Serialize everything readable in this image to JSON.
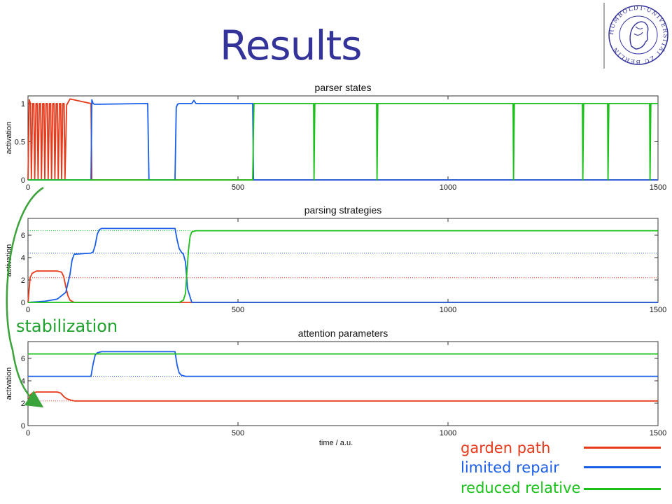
{
  "slide": {
    "title": "Results",
    "annotation": "stabilization",
    "annotation_color": "#1fa12e",
    "logo_text": "HUMBOLDT-UNIVERSITÄT ZU BERLIN"
  },
  "legend": [
    {
      "label": "garden path",
      "color": "#e8391a"
    },
    {
      "label": "limited repair",
      "color": "#1a5ee8"
    },
    {
      "label": "reduced relative",
      "color": "#19c119"
    }
  ],
  "chart_data": [
    {
      "type": "line",
      "title": "parser states",
      "xlabel": "",
      "ylabel": "activation",
      "xlim": [
        0,
        1500
      ],
      "ylim": [
        0,
        1.1
      ],
      "xticks": [
        "0",
        "500",
        "1000",
        "1500"
      ],
      "yticks": [
        "0",
        "0.5",
        "1"
      ],
      "series": [
        {
          "name": "garden path",
          "color": "#e8391a",
          "x": [
            0,
            3,
            6,
            8,
            11,
            14,
            16,
            19,
            22,
            24,
            27,
            30,
            32,
            35,
            38,
            40,
            43,
            46,
            48,
            51,
            54,
            56,
            59,
            62,
            64,
            67,
            70,
            72,
            75,
            78,
            80,
            83,
            86,
            88,
            92,
            100,
            150,
            152,
            155,
            200,
            1500
          ],
          "y": [
            0,
            1.05,
            1,
            0,
            1,
            1,
            0,
            1,
            1,
            0,
            1,
            1,
            0,
            1,
            1,
            0,
            1,
            1,
            0,
            1,
            1,
            0,
            1,
            1,
            0,
            1,
            1,
            0,
            1,
            1,
            0,
            1,
            1,
            0,
            0.98,
            1.06,
            1,
            0,
            0,
            0,
            0
          ]
        },
        {
          "name": "limited repair",
          "color": "#1a5ee8",
          "x": [
            0,
            150,
            152,
            155,
            158,
            285,
            288,
            290,
            350,
            353,
            356,
            360,
            390,
            395,
            400,
            535,
            537,
            540,
            1500
          ],
          "y": [
            0,
            0,
            1.05,
            1.0,
            0.99,
            1,
            0,
            0,
            0,
            0.95,
            0.99,
            1,
            1,
            1.04,
            1,
            1,
            0,
            0,
            0
          ]
        },
        {
          "name": "reduced relative",
          "color": "#19c119",
          "x": [
            0,
            535,
            538,
            540,
            680,
            681,
            683,
            830,
            831,
            833,
            1155,
            1156,
            1158,
            1320,
            1321,
            1323,
            1380,
            1381,
            1383,
            1480,
            1481,
            1483,
            1500
          ],
          "y": [
            0,
            0,
            1,
            1,
            1,
            0,
            1,
            1,
            0,
            1,
            1,
            0,
            1,
            1,
            0,
            1,
            1,
            0,
            1,
            1,
            0,
            1,
            1
          ]
        }
      ]
    },
    {
      "type": "line",
      "title": "parsing strategies",
      "xlabel": "",
      "ylabel": "activation",
      "xlim": [
        0,
        1500
      ],
      "ylim": [
        0,
        7.5
      ],
      "xticks": [
        "0",
        "500",
        "1000",
        "1500"
      ],
      "yticks": [
        "0",
        "2",
        "4",
        "6"
      ],
      "reference_lines": [
        {
          "y": 2.2,
          "color": "#e8391a"
        },
        {
          "y": 4.4,
          "color": "#1a5ee8"
        },
        {
          "y": 6.4,
          "color": "#19c119"
        }
      ],
      "series": [
        {
          "name": "garden path",
          "color": "#e8391a",
          "x": [
            0,
            5,
            10,
            20,
            40,
            70,
            80,
            85,
            90,
            95,
            100,
            110,
            120,
            1500
          ],
          "y": [
            0,
            2.2,
            2.6,
            2.8,
            2.8,
            2.8,
            2.7,
            2.3,
            1.4,
            0.6,
            0.2,
            0,
            0,
            0
          ]
        },
        {
          "name": "limited repair",
          "color": "#1a5ee8",
          "x": [
            0,
            40,
            70,
            90,
            100,
            105,
            110,
            150,
            155,
            160,
            165,
            170,
            175,
            190,
            350,
            355,
            360,
            365,
            370,
            375,
            380,
            390,
            1500
          ],
          "y": [
            0,
            0.1,
            0.3,
            0.9,
            2.5,
            3.8,
            4.3,
            4.4,
            4.5,
            5.1,
            6.1,
            6.5,
            6.6,
            6.6,
            6.6,
            5.6,
            4.8,
            4.5,
            4.3,
            3.6,
            1.2,
            0,
            0
          ]
        },
        {
          "name": "reduced relative",
          "color": "#19c119",
          "x": [
            0,
            360,
            370,
            375,
            378,
            382,
            386,
            390,
            400,
            1500
          ],
          "y": [
            0,
            0,
            0.2,
            0.8,
            2.5,
            4.6,
            5.9,
            6.3,
            6.4,
            6.4
          ]
        }
      ]
    },
    {
      "type": "line",
      "title": "attention parameters",
      "xlabel": "time / a.u.",
      "ylabel": "activation",
      "xlim": [
        0,
        1500
      ],
      "ylim": [
        0,
        7.5
      ],
      "xticks": [
        "0",
        "500",
        "1000",
        "1500"
      ],
      "yticks": [
        "0",
        "2",
        "4",
        "6"
      ],
      "reference_lines": [
        {
          "y": 2.2,
          "color": "#e8391a"
        },
        {
          "y": 4.4,
          "color": "#1a5ee8"
        },
        {
          "y": 6.4,
          "color": "#19c119"
        }
      ],
      "series": [
        {
          "name": "garden path",
          "color": "#e8391a",
          "x": [
            0,
            5,
            10,
            20,
            70,
            78,
            85,
            92,
            100,
            110,
            1500
          ],
          "y": [
            2.2,
            2.7,
            2.9,
            3.0,
            3.0,
            2.9,
            2.6,
            2.4,
            2.3,
            2.2,
            2.2
          ]
        },
        {
          "name": "limited repair",
          "color": "#1a5ee8",
          "x": [
            0,
            150,
            155,
            160,
            165,
            175,
            350,
            355,
            360,
            365,
            375,
            1500
          ],
          "y": [
            4.4,
            4.4,
            5.5,
            6.3,
            6.5,
            6.6,
            6.6,
            5.4,
            4.7,
            4.5,
            4.4,
            4.4
          ]
        },
        {
          "name": "reduced relative",
          "color": "#19c119",
          "x": [
            0,
            1500
          ],
          "y": [
            6.4,
            6.4
          ]
        }
      ]
    }
  ]
}
